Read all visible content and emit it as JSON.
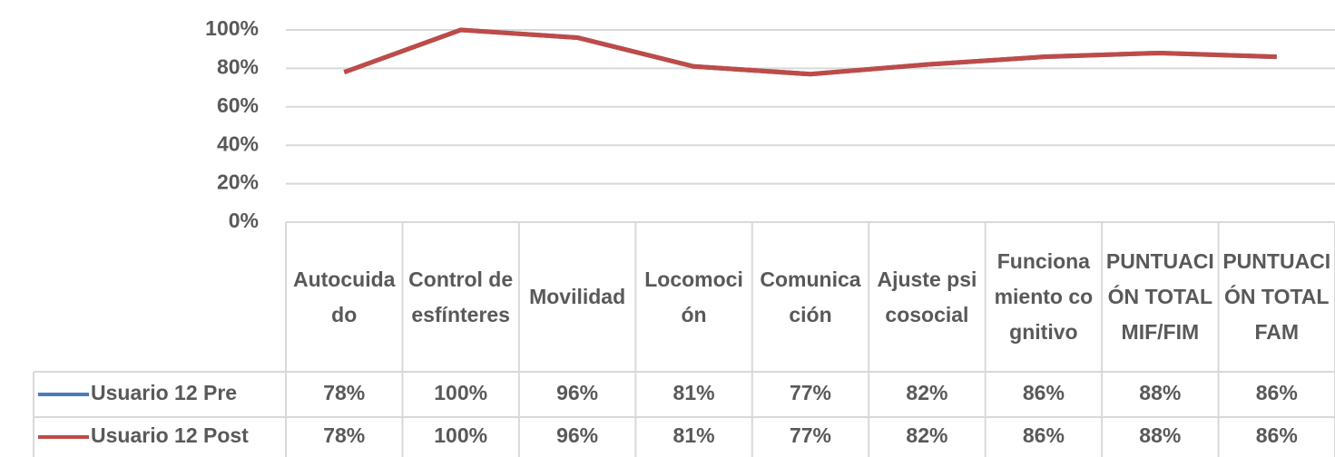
{
  "chart_data": {
    "type": "line",
    "categories": [
      "Autocuidado",
      "Control de esfínteres",
      "Movilidad",
      "Locomoción",
      "Comunicación",
      "Ajuste psicosocial",
      "Funcionamiento cognitivo",
      "PUNTUACIÓN TOTAL MIF/FIM",
      "PUNTUACIÓN TOTAL FAM"
    ],
    "series": [
      {
        "name": "Usuario 12 Pre",
        "color": "#4a7ebb",
        "values": [
          78,
          100,
          96,
          81,
          77,
          82,
          86,
          88,
          86
        ],
        "value_labels": [
          "78%",
          "100%",
          "96%",
          "81%",
          "77%",
          "82%",
          "86%",
          "88%",
          "86%"
        ]
      },
      {
        "name": "Usuario 12 Post",
        "color": "#be4b48",
        "values": [
          78,
          100,
          96,
          81,
          77,
          82,
          86,
          88,
          86
        ],
        "value_labels": [
          "78%",
          "100%",
          "96%",
          "81%",
          "77%",
          "82%",
          "86%",
          "88%",
          "86%"
        ]
      }
    ],
    "ylim": [
      0,
      100
    ],
    "yticks": [
      {
        "value": 0,
        "label": "0%"
      },
      {
        "value": 20,
        "label": "20%"
      },
      {
        "value": 40,
        "label": "40%"
      },
      {
        "value": 60,
        "label": "60%"
      },
      {
        "value": 80,
        "label": "80%"
      },
      {
        "value": 100,
        "label": "100%"
      }
    ],
    "grid": true
  }
}
